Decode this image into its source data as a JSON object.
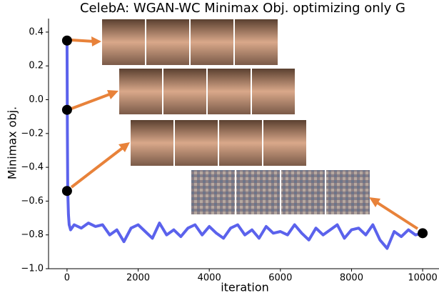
{
  "chart_data": {
    "type": "line",
    "title": "CelebA: WGAN-WC Minimax Obj. optimizing only G",
    "xlabel": "iteration",
    "ylabel": "Minimax obj.",
    "x": [
      0,
      10,
      20,
      40,
      60,
      100,
      200,
      400,
      600,
      800,
      1000,
      1200,
      1400,
      1600,
      1800,
      2000,
      2200,
      2400,
      2600,
      2800,
      3000,
      3200,
      3400,
      3600,
      3800,
      4000,
      4200,
      4400,
      4600,
      4800,
      5000,
      5200,
      5400,
      5600,
      5800,
      6000,
      6200,
      6400,
      6600,
      6800,
      7000,
      7200,
      7400,
      7600,
      7800,
      8000,
      8200,
      8400,
      8600,
      8800,
      9000,
      9200,
      9400,
      9600,
      9800,
      10000
    ],
    "values": [
      0.35,
      -0.2,
      -0.54,
      -0.68,
      -0.74,
      -0.77,
      -0.74,
      -0.76,
      -0.73,
      -0.75,
      -0.74,
      -0.8,
      -0.77,
      -0.84,
      -0.76,
      -0.74,
      -0.78,
      -0.82,
      -0.73,
      -0.8,
      -0.77,
      -0.81,
      -0.76,
      -0.74,
      -0.8,
      -0.75,
      -0.79,
      -0.82,
      -0.76,
      -0.74,
      -0.8,
      -0.77,
      -0.82,
      -0.75,
      -0.79,
      -0.78,
      -0.8,
      -0.74,
      -0.79,
      -0.83,
      -0.76,
      -0.8,
      -0.77,
      -0.74,
      -0.82,
      -0.77,
      -0.76,
      -0.8,
      -0.74,
      -0.83,
      -0.88,
      -0.78,
      -0.81,
      -0.77,
      -0.8,
      -0.79
    ],
    "color": "#5b62ec",
    "markers": {
      "x": [
        0,
        0,
        0,
        10000
      ],
      "values": [
        0.35,
        -0.06,
        -0.54,
        -0.79
      ],
      "color": "#000000"
    },
    "xlim": [
      -520,
      10460
    ],
    "ylim": [
      -1.0,
      0.48
    ],
    "xticks": [
      0,
      2000,
      4000,
      6000,
      8000,
      10000
    ],
    "yticks": [
      {
        "value": -1.0,
        "label": "−1.0"
      },
      {
        "value": -0.8,
        "label": "−0.8"
      },
      {
        "value": -0.6,
        "label": "−0.6"
      },
      {
        "value": -0.4,
        "label": "−0.4"
      },
      {
        "value": -0.2,
        "label": "−0.2"
      },
      {
        "value": 0.0,
        "label": "0.0"
      },
      0.2,
      0.4
    ]
  }
}
